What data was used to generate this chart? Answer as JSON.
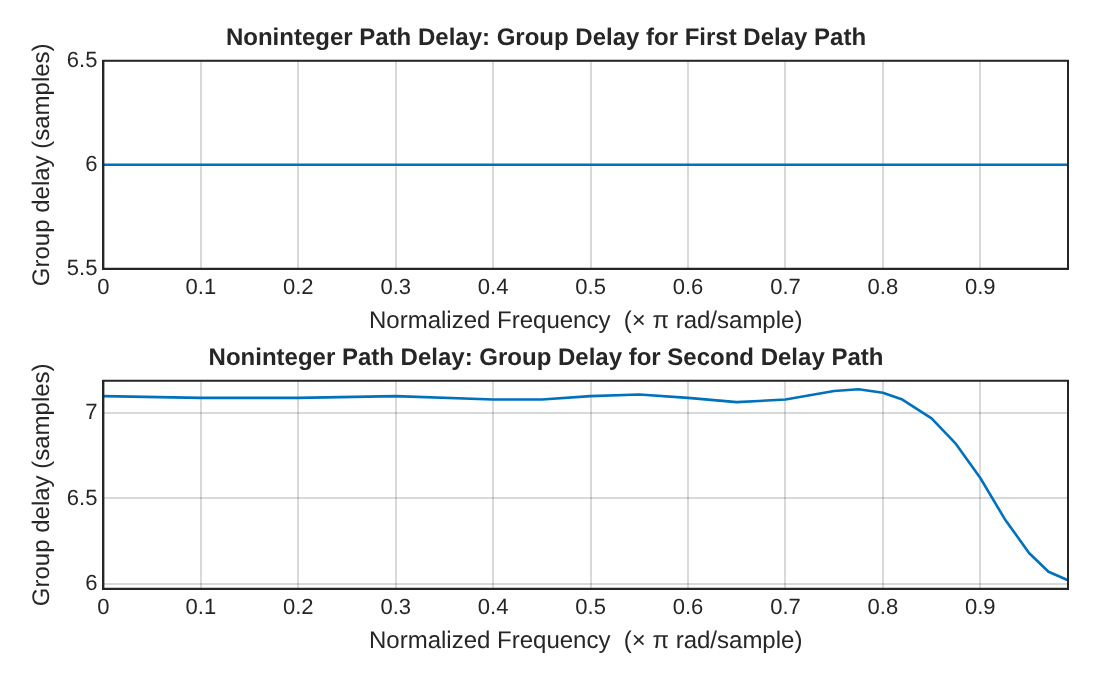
{
  "chart_data": [
    {
      "type": "line",
      "title": "Noninteger Path Delay: Group Delay for First Delay Path",
      "xlabel": "Normalized Frequency  (× π rad/sample)",
      "ylabel": "Group delay (samples)",
      "x": [
        0,
        0.99
      ],
      "series": [
        {
          "color": "#0072bd",
          "values": [
            6,
            6
          ]
        }
      ],
      "xlim": [
        0,
        0.99
      ],
      "ylim": [
        5.5,
        6.5
      ],
      "xticks": [
        0,
        0.1,
        0.2,
        0.3,
        0.4,
        0.5,
        0.6,
        0.7,
        0.8,
        0.9
      ],
      "yticks": [
        5.5,
        6,
        6.5
      ],
      "grid": true,
      "legend": false,
      "marker": "none",
      "line_style": "solid"
    },
    {
      "type": "line",
      "title": "Noninteger Path Delay: Group Delay for Second Delay Path",
      "xlabel": "Normalized Frequency  (× π rad/sample)",
      "ylabel": "Group delay (samples)",
      "x": [
        0,
        0.1,
        0.2,
        0.3,
        0.4,
        0.45,
        0.5,
        0.55,
        0.6,
        0.65,
        0.7,
        0.75,
        0.775,
        0.8,
        0.82,
        0.85,
        0.875,
        0.9,
        0.925,
        0.95,
        0.97,
        0.99
      ],
      "series": [
        {
          "color": "#0072bd",
          "values": [
            7.1,
            7.09,
            7.09,
            7.1,
            7.08,
            7.08,
            7.1,
            7.11,
            7.09,
            7.065,
            7.08,
            7.13,
            7.14,
            7.12,
            7.08,
            6.97,
            6.82,
            6.62,
            6.38,
            6.18,
            6.07,
            6.02
          ]
        }
      ],
      "xlim": [
        0,
        0.99
      ],
      "ylim": [
        5.97,
        7.19
      ],
      "xticks": [
        0,
        0.1,
        0.2,
        0.3,
        0.4,
        0.5,
        0.6,
        0.7,
        0.8,
        0.9
      ],
      "yticks": [
        6,
        6.5,
        7
      ],
      "grid": true,
      "legend": false,
      "marker": "none",
      "line_style": "solid"
    }
  ]
}
